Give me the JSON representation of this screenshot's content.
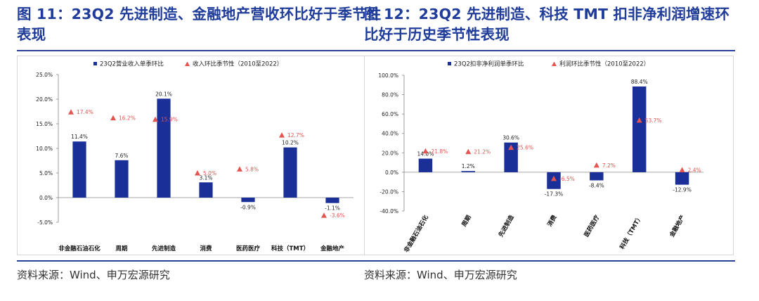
{
  "figures": [
    {
      "title": "图 11：23Q2 先进制造、金融地产营收环比好于季节性表现",
      "source": "资料来源：Wind、申万宏源研究"
    },
    {
      "title": "图 12：23Q2 先进制造、科技 TMT 扣非净利润增速环比好于历史季节性表现",
      "source": "资料来源：Wind、申万宏源研究"
    }
  ],
  "colors": {
    "bar": "#1b2f99",
    "marker": "#e5544f",
    "title": "#1f3c9a"
  },
  "chart_data": [
    {
      "type": "bar",
      "categories": [
        "非金融石油石化",
        "周期",
        "先进制造",
        "消费",
        "医药医疗",
        "科技（TMT）",
        "金融地产"
      ],
      "series": [
        {
          "name": "23Q2营业收入单季环比",
          "values": [
            11.4,
            7.6,
            20.1,
            3.1,
            -0.9,
            10.2,
            -1.1
          ],
          "labels": [
            "11.4%",
            "7.6%",
            "20.1%",
            "3.1%",
            "-0.9%",
            "10.2%",
            "-1.1%"
          ],
          "style": "bar"
        },
        {
          "name": "收入环比季节性（2010至2022）",
          "values": [
            17.4,
            16.2,
            15.9,
            5.0,
            5.8,
            12.7,
            -3.6
          ],
          "labels": [
            "17.4%",
            "16.2%",
            "15.9%",
            "5.0%",
            "5.8%",
            "12.7%",
            "-3.6%"
          ],
          "style": "triangle"
        }
      ],
      "yticks": [
        "25.0%",
        "20.0%",
        "15.0%",
        "10.0%",
        "5.0%",
        "0.0%",
        "-5.0%"
      ],
      "ylim": [
        -5,
        25
      ],
      "legend": "top"
    },
    {
      "type": "bar",
      "categories": [
        "非金融石油石化",
        "周期",
        "先进制造",
        "消费",
        "医药医疗",
        "科技（TMT）",
        "金融地产"
      ],
      "series": [
        {
          "name": "23Q2扣非净利润单季环比",
          "values": [
            14.0,
            1.2,
            30.6,
            -17.3,
            -8.4,
            88.4,
            -12.9
          ],
          "labels": [
            "14.0%",
            "1.2%",
            "30.6%",
            "-17.3%",
            "-8.4%",
            "88.4%",
            "-12.9%"
          ],
          "style": "bar"
        },
        {
          "name": "利润环比季节性（2010至2022）",
          "values": [
            21.8,
            21.2,
            25.6,
            -6.5,
            7.2,
            53.7,
            2.4
          ],
          "labels": [
            "21.8%",
            "21.2%",
            "25.6%",
            "-6.5%",
            "7.2%",
            "53.7%",
            "2.4%"
          ],
          "style": "triangle"
        }
      ],
      "yticks": [
        "100.0%",
        "80.0%",
        "60.0%",
        "40.0%",
        "20.0%",
        "0.0%",
        "-20.0%",
        "-40.0%"
      ],
      "ylim": [
        -40,
        100
      ],
      "legend": "top"
    }
  ]
}
